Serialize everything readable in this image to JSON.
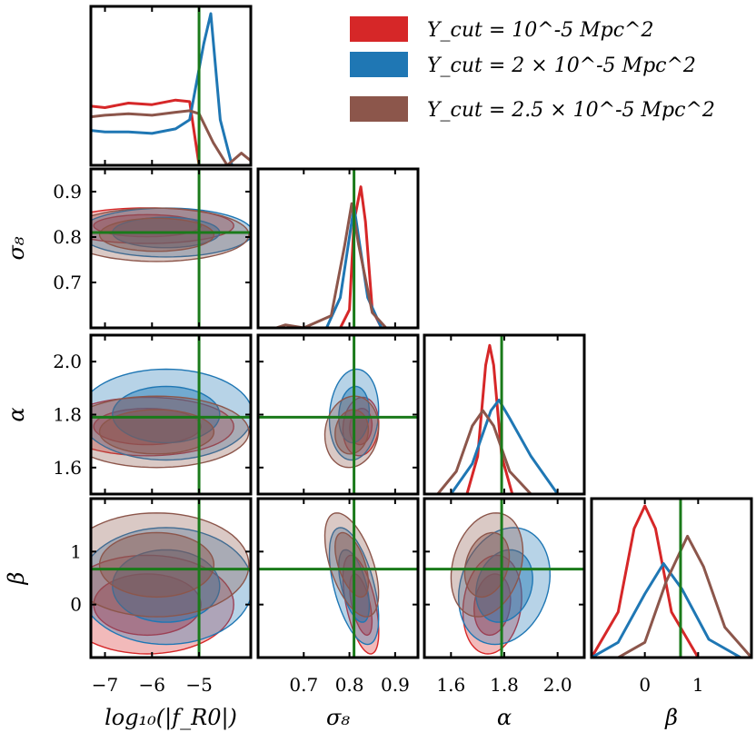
{
  "chart_data": {
    "type": "corner",
    "parameters": [
      "log10(|fR0|)",
      "σ8",
      "α",
      "β"
    ],
    "axis_labels": [
      "log₁₀(|f_R0|)",
      "σ₈",
      "α",
      "β"
    ],
    "ranges": {
      "logfR0": [
        -7.3,
        -3.9
      ],
      "sigma8": [
        0.6,
        0.95
      ],
      "alpha": [
        1.5,
        2.1
      ],
      "beta": [
        -1.0,
        2.0
      ]
    },
    "ticks": {
      "logfR0": [
        -7,
        -6,
        -5
      ],
      "sigma8": [
        0.7,
        0.8,
        0.9
      ],
      "alpha": [
        1.6,
        1.8,
        2.0
      ],
      "beta": [
        0,
        1
      ]
    },
    "tick_labels": {
      "logfR0": [
        "−7",
        "−6",
        "−5"
      ],
      "sigma8": [
        "0.7",
        "0.8",
        "0.9"
      ],
      "alpha": [
        "1.6",
        "1.8",
        "2.0"
      ],
      "beta": [
        "0",
        "1"
      ]
    },
    "fiducial": {
      "logfR0": -5,
      "sigma8": 0.81,
      "alpha": 1.79,
      "beta": 0.67,
      "color": "#1a7a1a"
    },
    "legend": {
      "placement": "top-right",
      "entries": [
        "Y_cut = 10^-5 Mpc^2",
        "Y_cut = 2 × 10^-5 Mpc^2",
        "Y_cut = 2.5 × 10^-5 Mpc^2"
      ]
    },
    "series": [
      {
        "name": "Y_cut = 10^-5 Mpc^2",
        "color": "#d62728",
        "mean": {
          "logfR0": -6.1,
          "sigma8": 0.825,
          "alpha": 1.755,
          "beta": 0.0
        },
        "sd": {
          "logfR0": 0.75,
          "sigma8": 0.016,
          "alpha": 0.045,
          "beta": 0.38
        },
        "corr": {
          "sigma8-beta": -0.55,
          "alpha-beta": 0.15,
          "sigma8-alpha": 0.1
        },
        "marginals": {
          "logfR0": {
            "x": [
              -7.3,
              -7.0,
              -6.5,
              -6.0,
              -5.5,
              -5.2,
              -5.0
            ],
            "y": [
              0.39,
              0.38,
              0.41,
              0.4,
              0.43,
              0.42,
              0.0
            ]
          },
          "sigma8": {
            "x": [
              0.78,
              0.8,
              0.81,
              0.825,
              0.835,
              0.85,
              0.87
            ],
            "y": [
              0.0,
              0.12,
              0.7,
              0.93,
              0.7,
              0.12,
              0.0
            ]
          },
          "alpha": {
            "x": [
              1.66,
              1.7,
              1.73,
              1.745,
              1.76,
              1.79,
              1.83
            ],
            "y": [
              0.0,
              0.25,
              0.85,
              0.98,
              0.85,
              0.25,
              0.0
            ]
          },
          "beta": {
            "x": [
              -1.0,
              -0.5,
              -0.2,
              0.0,
              0.2,
              0.5,
              1.0
            ],
            "y": [
              0.0,
              0.3,
              0.85,
              1.0,
              0.85,
              0.3,
              0.0
            ]
          }
        }
      },
      {
        "name": "Y_cut = 2 × 10^-5 Mpc^2",
        "color": "#1f77b4",
        "mean": {
          "logfR0": -5.7,
          "sigma8": 0.81,
          "alpha": 1.8,
          "beta": 0.35
        },
        "sd": {
          "logfR0": 0.75,
          "sigma8": 0.022,
          "alpha": 0.07,
          "beta": 0.45
        },
        "corr": {
          "sigma8-beta": -0.55,
          "alpha-beta": 0.2,
          "sigma8-alpha": 0.1
        },
        "marginals": {
          "logfR0": {
            "x": [
              -7.3,
              -7.0,
              -6.5,
              -6.0,
              -5.5,
              -5.2,
              -4.9,
              -4.75,
              -4.55,
              -4.3
            ],
            "y": [
              0.23,
              0.22,
              0.22,
              0.21,
              0.24,
              0.3,
              0.8,
              1.0,
              0.3,
              0.0
            ]
          },
          "sigma8": {
            "x": [
              0.75,
              0.78,
              0.8,
              0.81,
              0.82,
              0.84,
              0.87
            ],
            "y": [
              0.0,
              0.2,
              0.6,
              0.8,
              0.6,
              0.2,
              0.0
            ]
          },
          "alpha": {
            "x": [
              1.6,
              1.68,
              1.75,
              1.78,
              1.82,
              1.9,
              2.0
            ],
            "y": [
              0.0,
              0.2,
              0.55,
              0.62,
              0.5,
              0.25,
              0.0
            ]
          },
          "beta": {
            "x": [
              -1.0,
              -0.5,
              0.0,
              0.35,
              0.7,
              1.2,
              1.8
            ],
            "y": [
              0.0,
              0.1,
              0.42,
              0.62,
              0.45,
              0.12,
              0.0
            ]
          }
        }
      },
      {
        "name": "Y_cut = 2.5 × 10^-5 Mpc^2",
        "color": "#8c564b",
        "mean": {
          "logfR0": -5.9,
          "sigma8": 0.805,
          "alpha": 1.735,
          "beta": 0.75
        },
        "sd": {
          "logfR0": 0.8,
          "sigma8": 0.024,
          "alpha": 0.055,
          "beta": 0.4
        },
        "corr": {
          "sigma8-beta": -0.55,
          "alpha-beta": 0.25,
          "sigma8-alpha": 0.1
        },
        "marginals": {
          "logfR0": {
            "x": [
              -7.3,
              -7.0,
              -6.5,
              -6.0,
              -5.5,
              -5.2,
              -5.0,
              -4.7,
              -4.4,
              -4.1,
              -3.9
            ],
            "y": [
              0.32,
              0.33,
              0.34,
              0.33,
              0.35,
              0.36,
              0.34,
              0.15,
              0.0,
              0.08,
              0.03
            ]
          },
          "sigma8": {
            "x": [
              0.64,
              0.66,
              0.7,
              0.76,
              0.79,
              0.805,
              0.82,
              0.85,
              0.88
            ],
            "y": [
              0.0,
              0.02,
              0.0,
              0.08,
              0.55,
              0.82,
              0.55,
              0.1,
              0.0
            ]
          },
          "alpha": {
            "x": [
              1.55,
              1.62,
              1.68,
              1.72,
              1.76,
              1.82,
              1.9
            ],
            "y": [
              0.0,
              0.15,
              0.45,
              0.55,
              0.45,
              0.15,
              0.0
            ]
          },
          "beta": {
            "x": [
              -0.5,
              0.0,
              0.4,
              0.8,
              1.1,
              1.5,
              2.0
            ],
            "y": [
              0.0,
              0.1,
              0.5,
              0.8,
              0.6,
              0.2,
              0.0
            ]
          }
        }
      }
    ]
  }
}
